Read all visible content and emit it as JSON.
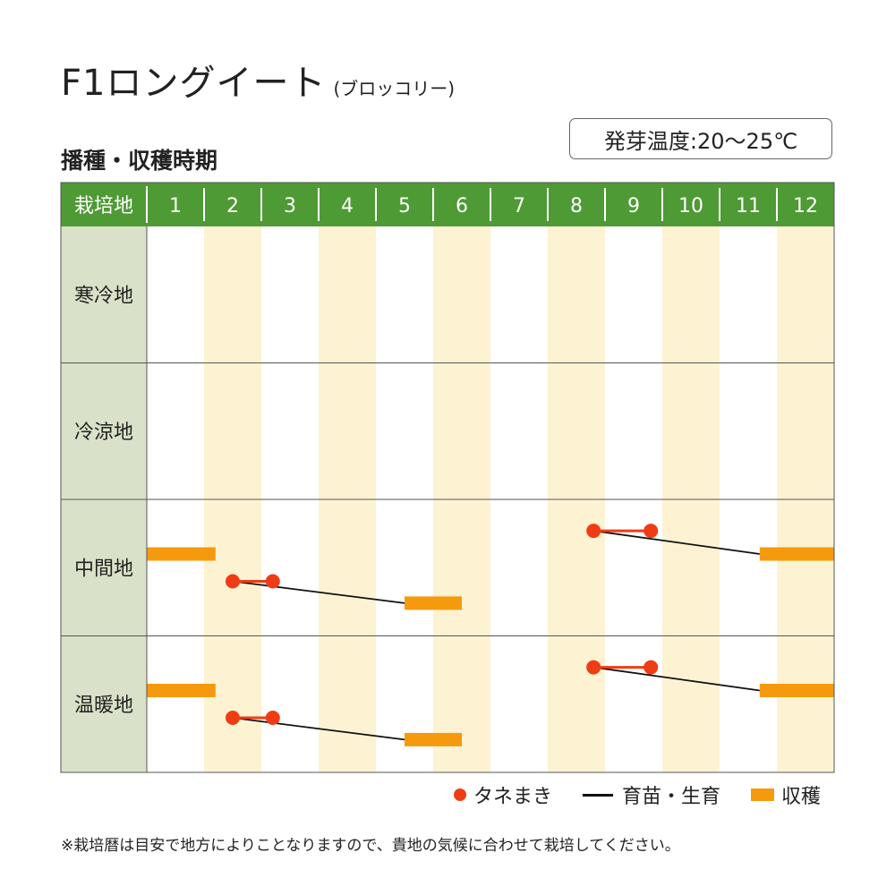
{
  "title": "F1ロングイート",
  "title_sub": "(ブロッコリー)",
  "subtitle": "播種・収穫時期",
  "germination_temp": "発芽温度:20〜25℃",
  "legend": {
    "sowing": "タネまき",
    "seedling": "育苗・生育",
    "harvest": "収穫"
  },
  "note": "※栽培暦は目安で地方によりことなりますので、貴地の気候に合わせて栽培してください。",
  "colors": {
    "header_green": "#4e9a34",
    "label_col": "#d9e2c8",
    "stripe": "#fdf3d3",
    "sowing_dot": "#f03c14",
    "harvest_bar": "#f59a0d",
    "growth_line": "#111111"
  },
  "chart_data": {
    "type": "gantt",
    "header_label": "栽培地",
    "months": [
      "1",
      "2",
      "3",
      "4",
      "5",
      "6",
      "7",
      "8",
      "9",
      "10",
      "11",
      "12"
    ],
    "regions": [
      {
        "name": "寒冷地",
        "tracks": []
      },
      {
        "name": "冷涼地",
        "tracks": []
      },
      {
        "name": "中間地",
        "tracks": [
          {
            "harvest": [
              1.0,
              2.2
            ]
          },
          {
            "sowing": [
              8.8,
              9.8
            ],
            "growth": [
              8.8,
              11.7
            ],
            "harvest": [
              11.7,
              13.0
            ]
          },
          {
            "sowing": [
              2.5,
              3.2
            ],
            "growth": [
              2.5,
              5.5
            ],
            "harvest": [
              5.5,
              6.5
            ]
          }
        ]
      },
      {
        "name": "温暖地",
        "tracks": [
          {
            "harvest": [
              1.0,
              2.2
            ]
          },
          {
            "sowing": [
              8.8,
              9.8
            ],
            "growth": [
              8.8,
              11.7
            ],
            "harvest": [
              11.7,
              13.0
            ]
          },
          {
            "sowing": [
              2.5,
              3.2
            ],
            "growth": [
              2.5,
              5.5
            ],
            "harvest": [
              5.5,
              6.5
            ]
          }
        ]
      }
    ]
  }
}
